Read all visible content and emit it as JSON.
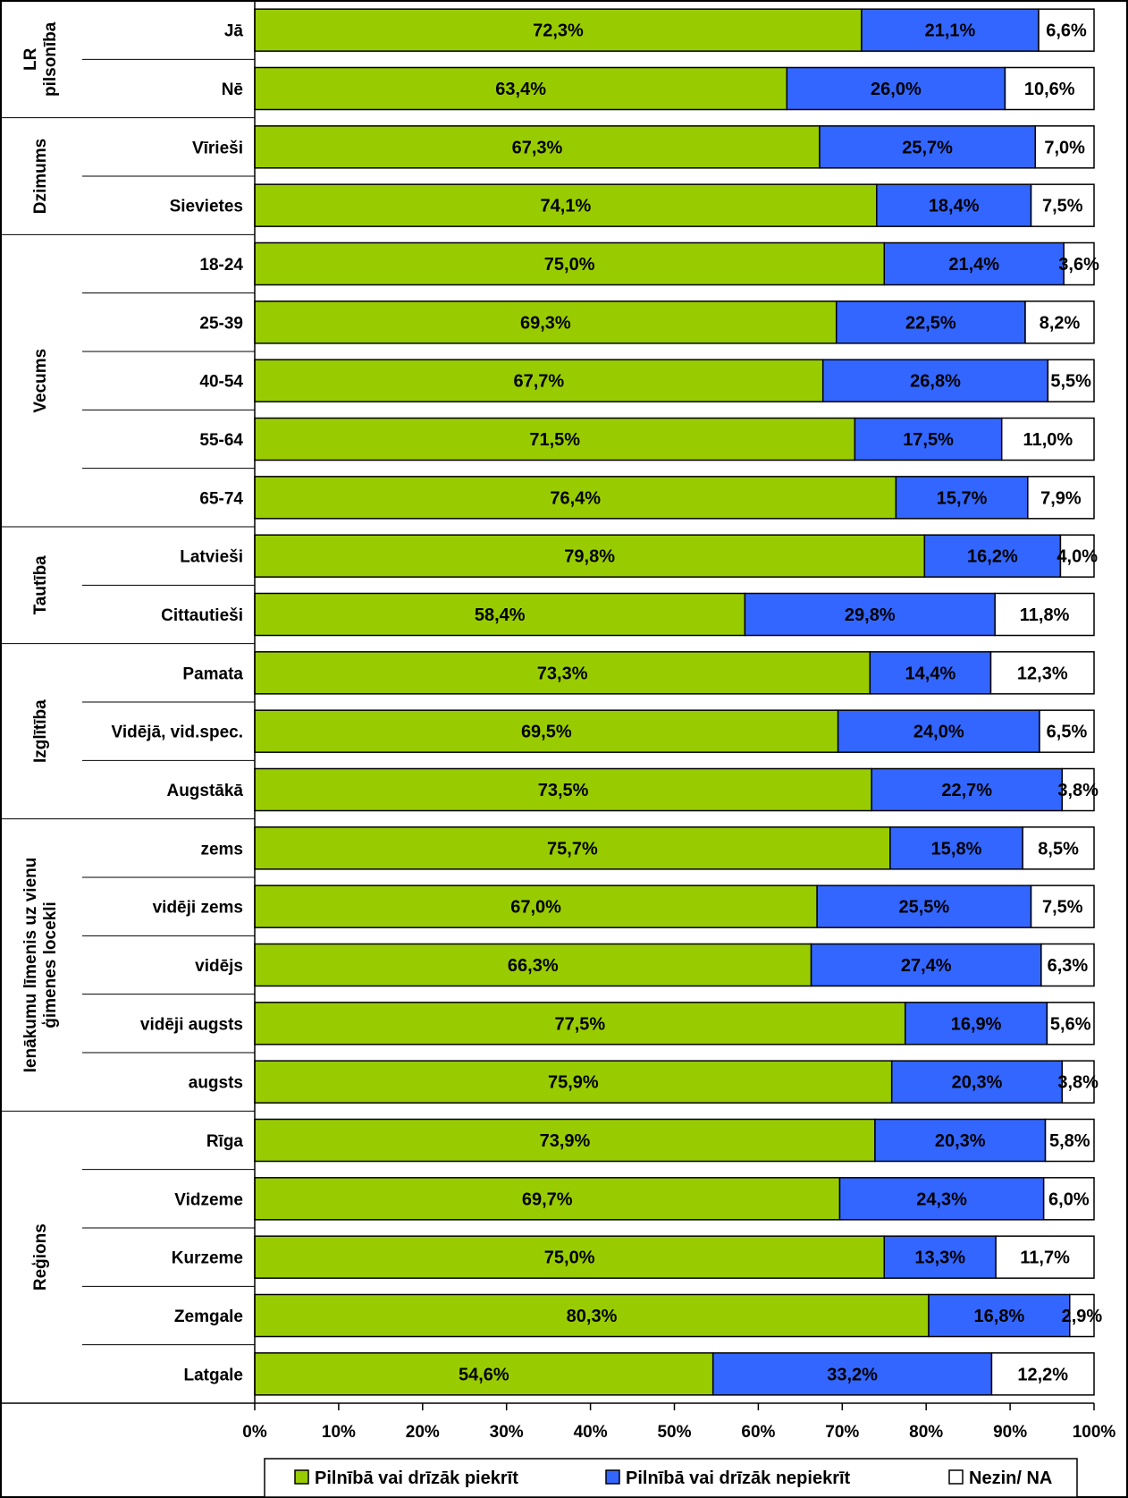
{
  "chart_data": {
    "type": "bar",
    "stacked": true,
    "orientation": "horizontal",
    "xlim": [
      0,
      100
    ],
    "x_ticks": [
      "0%",
      "10%",
      "20%",
      "30%",
      "40%",
      "50%",
      "60%",
      "70%",
      "80%",
      "90%",
      "100%"
    ],
    "grid": false,
    "legend_position": "bottom",
    "groups": [
      {
        "label": "LR pilsonība",
        "label_lines": [
          "LR",
          "pilsonība"
        ],
        "rows": 2
      },
      {
        "label": "Dzimums",
        "label_lines": [
          "Dzimums"
        ],
        "rows": 2
      },
      {
        "label": "Vecums",
        "label_lines": [
          "Vecums"
        ],
        "rows": 5
      },
      {
        "label": "Tautība",
        "label_lines": [
          "Tautība"
        ],
        "rows": 2
      },
      {
        "label": "Izglītība",
        "label_lines": [
          "Izglītība"
        ],
        "rows": 3
      },
      {
        "label": "Ienākumu līmenis uz vienu ģimenes locekli",
        "label_lines": [
          "Ienākumu līmenis uz vienu",
          "ģimenes locekli"
        ],
        "rows": 5
      },
      {
        "label": "Reģions",
        "label_lines": [
          "Reģions"
        ],
        "rows": 5
      }
    ],
    "categories": [
      "Jā",
      "Nē",
      "Vīrieši",
      "Sievietes",
      "18-24",
      "25-39",
      "40-54",
      "55-64",
      "65-74",
      "Latvieši",
      "Cittautieši",
      "Pamata",
      "Vidējā, vid.spec.",
      "Augstākā",
      "zems",
      "vidēji zems",
      "vidējs",
      "vidēji augsts",
      "augsts",
      "Rīga",
      "Vidzeme",
      "Kurzeme",
      "Zemgale",
      "Latgale"
    ],
    "series": [
      {
        "name": "Pilnībā vai drīzāk piekrīt",
        "color": "#99cc00",
        "values": [
          72.3,
          63.4,
          67.3,
          74.1,
          75.0,
          69.3,
          67.7,
          71.5,
          76.4,
          79.8,
          58.4,
          73.3,
          69.5,
          73.5,
          75.7,
          67.0,
          66.3,
          77.5,
          75.9,
          73.9,
          69.7,
          75.0,
          80.3,
          54.6
        ],
        "labels": [
          "72,3%",
          "63,4%",
          "67,3%",
          "74,1%",
          "75,0%",
          "69,3%",
          "67,7%",
          "71,5%",
          "76,4%",
          "79,8%",
          "58,4%",
          "73,3%",
          "69,5%",
          "73,5%",
          "75,7%",
          "67,0%",
          "66,3%",
          "77,5%",
          "75,9%",
          "73,9%",
          "69,7%",
          "75,0%",
          "80,3%",
          "54,6%"
        ]
      },
      {
        "name": "Pilnībā vai drīzāk nepiekrīt",
        "color": "#3366ff",
        "values": [
          21.1,
          26.0,
          25.7,
          18.4,
          21.4,
          22.5,
          26.8,
          17.5,
          15.7,
          16.2,
          29.8,
          14.4,
          24.0,
          22.7,
          15.8,
          25.5,
          27.4,
          16.9,
          20.3,
          20.3,
          24.3,
          13.3,
          16.8,
          33.2
        ],
        "labels": [
          "21,1%",
          "26,0%",
          "25,7%",
          "18,4%",
          "21,4%",
          "22,5%",
          "26,8%",
          "17,5%",
          "15,7%",
          "16,2%",
          "29,8%",
          "14,4%",
          "24,0%",
          "22,7%",
          "15,8%",
          "25,5%",
          "27,4%",
          "16,9%",
          "20,3%",
          "20,3%",
          "24,3%",
          "13,3%",
          "16,8%",
          "33,2%"
        ]
      },
      {
        "name": "Nezin/ NA",
        "color": "#ffffff",
        "values": [
          6.6,
          10.6,
          7.0,
          7.5,
          3.6,
          8.2,
          5.5,
          11.0,
          7.9,
          4.0,
          11.8,
          12.3,
          6.5,
          3.8,
          8.5,
          7.5,
          6.3,
          5.6,
          3.8,
          5.8,
          6.0,
          11.7,
          2.9,
          12.2
        ],
        "labels": [
          "6,6%",
          "10,6%",
          "7,0%",
          "7,5%",
          "3,6%",
          "8,2%",
          "5,5%",
          "11,0%",
          "7,9%",
          "4,0%",
          "11,8%",
          "12,3%",
          "6,5%",
          "3,8%",
          "8,5%",
          "7,5%",
          "6,3%",
          "5,6%",
          "3,8%",
          "5,8%",
          "6,0%",
          "11,7%",
          "2,9%",
          "12,2%"
        ]
      }
    ]
  }
}
